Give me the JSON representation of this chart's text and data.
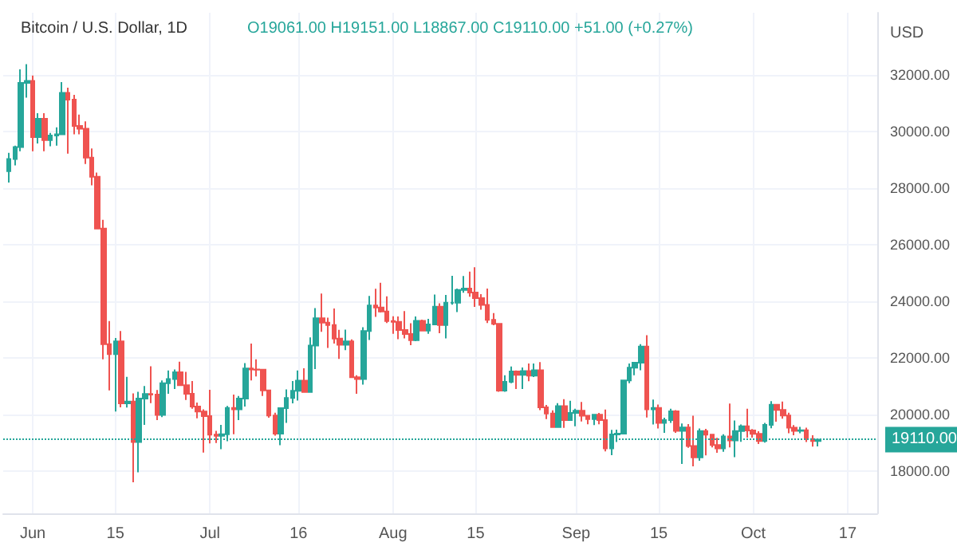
{
  "chart_data": {
    "type": "candlestick",
    "title": "Bitcoin / U.S. Dollar, 1D",
    "subtitle": "O19061.00 H19151.00 L18867.00 C19110.00 +51.00 (+0.27%)",
    "ylabel": "USD",
    "x": [
      "--05-28",
      "--05-29",
      "--05-30",
      "--05-31",
      "--06-01",
      "--06-02",
      "--06-03",
      "--06-04",
      "--06-05",
      "--06-06",
      "--06-07",
      "--06-08",
      "--06-09",
      "--06-10",
      "--06-11",
      "--06-12",
      "--06-13",
      "--06-14",
      "--06-15",
      "--06-16",
      "--06-17",
      "--06-18",
      "--06-19",
      "--06-20",
      "--06-21",
      "--06-22",
      "--06-23",
      "--06-24",
      "--06-25",
      "--06-26",
      "--06-27",
      "--06-28",
      "--06-29",
      "--06-30",
      "--07-01",
      "--07-02",
      "--07-03",
      "--07-04",
      "--07-05",
      "--07-06",
      "--07-07",
      "--07-08",
      "--07-09",
      "--07-10",
      "--07-11",
      "--07-12",
      "--07-13",
      "--07-14",
      "--07-15",
      "--07-16",
      "--07-17",
      "--07-18",
      "--07-19",
      "--07-20",
      "--07-21",
      "--07-22",
      "--07-23",
      "--07-24",
      "--07-25",
      "--07-26",
      "--07-27",
      "--07-28",
      "--07-29",
      "--07-30",
      "--07-31",
      "--08-01",
      "--08-02",
      "--08-03",
      "--08-04",
      "--08-05",
      "--08-06",
      "--08-07",
      "--08-08",
      "--08-09",
      "--08-10",
      "--08-11",
      "--08-12",
      "--08-13",
      "--08-14",
      "--08-15",
      "--08-16",
      "--08-17",
      "--08-18",
      "--08-19",
      "--08-20",
      "--08-21",
      "--08-22",
      "--08-23",
      "--08-24",
      "--08-25",
      "--08-26",
      "--08-27",
      "--08-28",
      "--08-29",
      "--08-30",
      "--08-31",
      "--09-01",
      "--09-02",
      "--09-03",
      "--09-04",
      "--09-05",
      "--09-06",
      "--09-07",
      "--09-08",
      "--09-09",
      "--09-10",
      "--09-11",
      "--09-12",
      "--09-13",
      "--09-14",
      "--09-15",
      "--09-16",
      "--09-17",
      "--09-18",
      "--09-19",
      "--09-20",
      "--09-21",
      "--09-22",
      "--09-23",
      "--09-24",
      "--09-25",
      "--09-26",
      "--09-27",
      "--09-28",
      "--09-29",
      "--09-30",
      "--10-01",
      "--10-02",
      "--10-03",
      "--10-04",
      "--10-05",
      "--10-06",
      "--10-07",
      "--10-08",
      "--10-09",
      "--10-10",
      "--10-11",
      "--10-12"
    ],
    "ohlc": [
      [
        28600,
        29250,
        28200,
        29030
      ],
      [
        29030,
        29500,
        28800,
        29450
      ],
      [
        29450,
        32200,
        29300,
        31720
      ],
      [
        31720,
        32380,
        31200,
        31790
      ],
      [
        31790,
        31980,
        29300,
        29800
      ],
      [
        29800,
        30650,
        29580,
        30450
      ],
      [
        30450,
        30650,
        29300,
        29700
      ],
      [
        29700,
        29950,
        29480,
        29860
      ],
      [
        29860,
        30150,
        29500,
        29900
      ],
      [
        29900,
        31750,
        29880,
        31370
      ],
      [
        31370,
        31550,
        29220,
        31130
      ],
      [
        31130,
        31300,
        29900,
        30200
      ],
      [
        30200,
        30600,
        29900,
        30100
      ],
      [
        30100,
        30360,
        28850,
        29080
      ],
      [
        29080,
        29400,
        28100,
        28400
      ],
      [
        28400,
        28550,
        26560,
        26570
      ],
      [
        26570,
        26880,
        21950,
        22480
      ],
      [
        22480,
        23300,
        20850,
        22130
      ],
      [
        22130,
        22700,
        20100,
        22580
      ],
      [
        22580,
        22950,
        20250,
        20390
      ],
      [
        20390,
        21330,
        20240,
        20450
      ],
      [
        20450,
        20740,
        17600,
        19020
      ],
      [
        19020,
        20800,
        17950,
        20560
      ],
      [
        20560,
        21000,
        19630,
        20720
      ],
      [
        20720,
        21700,
        20400,
        20700
      ],
      [
        20700,
        20860,
        19800,
        19980
      ],
      [
        19980,
        21200,
        19900,
        21100
      ],
      [
        21100,
        21550,
        20730,
        21250
      ],
      [
        21250,
        21590,
        20900,
        21490
      ],
      [
        21490,
        21860,
        21000,
        21030
      ],
      [
        21030,
        21500,
        20510,
        20730
      ],
      [
        20730,
        21180,
        20200,
        20280
      ],
      [
        20280,
        20420,
        19860,
        20100
      ],
      [
        20100,
        20180,
        18650,
        19940
      ],
      [
        19940,
        20870,
        18970,
        19280
      ],
      [
        19280,
        19420,
        18990,
        19240
      ],
      [
        19240,
        19630,
        18770,
        19300
      ],
      [
        19300,
        20300,
        19050,
        20230
      ],
      [
        20230,
        20700,
        19300,
        20180
      ],
      [
        20180,
        20650,
        19800,
        20560
      ],
      [
        20560,
        21810,
        20280,
        21620
      ],
      [
        21620,
        22500,
        21200,
        21590
      ],
      [
        21590,
        21950,
        21340,
        21580
      ],
      [
        21580,
        21600,
        20650,
        20850
      ],
      [
        20850,
        20850,
        19880,
        19960
      ],
      [
        19960,
        20060,
        19250,
        19320
      ],
      [
        19320,
        20230,
        18910,
        20220
      ],
      [
        20220,
        20880,
        19700,
        20580
      ],
      [
        20580,
        21180,
        20390,
        20830
      ],
      [
        20830,
        21550,
        20490,
        21190
      ],
      [
        21190,
        21630,
        20780,
        20790
      ],
      [
        20790,
        22720,
        20770,
        22430
      ],
      [
        22430,
        23760,
        21600,
        23400
      ],
      [
        23400,
        24270,
        22920,
        23240
      ],
      [
        23240,
        23420,
        22350,
        23160
      ],
      [
        23160,
        23740,
        22500,
        22680
      ],
      [
        22680,
        22990,
        21960,
        22460
      ],
      [
        22460,
        23000,
        22270,
        22580
      ],
      [
        22580,
        22650,
        21300,
        21310
      ],
      [
        21310,
        21380,
        20730,
        21250
      ],
      [
        21250,
        23080,
        21050,
        22950
      ],
      [
        22950,
        24190,
        22630,
        23850
      ],
      [
        23850,
        24440,
        23450,
        23780
      ],
      [
        23780,
        24650,
        23600,
        23640
      ],
      [
        23640,
        24170,
        23230,
        23300
      ],
      [
        23300,
        23470,
        22850,
        23270
      ],
      [
        23270,
        23460,
        22660,
        22980
      ],
      [
        22980,
        23650,
        22690,
        22840
      ],
      [
        22840,
        23220,
        22450,
        22620
      ],
      [
        22620,
        23460,
        22590,
        23310
      ],
      [
        23310,
        23350,
        22940,
        22960
      ],
      [
        22960,
        23380,
        22850,
        23180
      ],
      [
        23180,
        24240,
        23160,
        23810
      ],
      [
        23810,
        23930,
        22870,
        23160
      ],
      [
        23160,
        24220,
        22690,
        23950
      ],
      [
        23950,
        24900,
        23880,
        23950
      ],
      [
        23950,
        24450,
        23620,
        24400
      ],
      [
        24400,
        24890,
        24300,
        24450
      ],
      [
        24450,
        25050,
        24160,
        24310
      ],
      [
        24310,
        25200,
        23800,
        24110
      ],
      [
        24110,
        24250,
        23700,
        23870
      ],
      [
        23870,
        24450,
        23230,
        23340
      ],
      [
        23340,
        23580,
        23150,
        23200
      ],
      [
        23200,
        23220,
        20800,
        20840
      ],
      [
        20840,
        21380,
        20800,
        21150
      ],
      [
        21150,
        21690,
        21100,
        21520
      ],
      [
        21520,
        21550,
        20900,
        21400
      ],
      [
        21400,
        21660,
        20900,
        21530
      ],
      [
        21530,
        21800,
        21170,
        21370
      ],
      [
        21370,
        21800,
        21320,
        21560
      ],
      [
        21560,
        21850,
        20150,
        20250
      ],
      [
        20250,
        20330,
        19830,
        20030
      ],
      [
        20030,
        20140,
        19550,
        19550
      ],
      [
        19550,
        20400,
        19550,
        20290
      ],
      [
        20290,
        20540,
        19520,
        19800
      ],
      [
        19800,
        20480,
        19800,
        20050
      ],
      [
        20050,
        20200,
        19580,
        20130
      ],
      [
        20130,
        20440,
        19750,
        19950
      ],
      [
        19950,
        19980,
        19650,
        19830
      ],
      [
        19830,
        20000,
        19620,
        19990
      ],
      [
        19990,
        20050,
        19650,
        19800
      ],
      [
        19800,
        20170,
        18690,
        18800
      ],
      [
        18800,
        19450,
        18560,
        19290
      ],
      [
        19290,
        19460,
        19020,
        19320
      ],
      [
        19320,
        21220,
        19300,
        21200
      ],
      [
        21200,
        21800,
        21100,
        21650
      ],
      [
        21650,
        21850,
        21380,
        21830
      ],
      [
        21830,
        22480,
        21560,
        22400
      ],
      [
        22400,
        22800,
        19890,
        20180
      ],
      [
        20180,
        20520,
        19640,
        20230
      ],
      [
        20230,
        20350,
        19500,
        19700
      ],
      [
        19700,
        19880,
        19350,
        19800
      ],
      [
        19800,
        20200,
        19700,
        20110
      ],
      [
        20110,
        20150,
        19350,
        19420
      ],
      [
        19420,
        19680,
        18250,
        19540
      ],
      [
        19540,
        19660,
        18820,
        18880
      ],
      [
        18880,
        19950,
        18160,
        18480
      ],
      [
        18480,
        19500,
        18360,
        19410
      ],
      [
        19410,
        19490,
        18550,
        19280
      ],
      [
        19280,
        19300,
        18830,
        18920
      ],
      [
        18920,
        19170,
        18640,
        18800
      ],
      [
        18800,
        19300,
        18680,
        19220
      ],
      [
        19220,
        20380,
        18830,
        19080
      ],
      [
        19080,
        19780,
        18490,
        19410
      ],
      [
        19410,
        19640,
        19030,
        19580
      ],
      [
        19580,
        20200,
        19180,
        19430
      ],
      [
        19430,
        19480,
        19180,
        19310
      ],
      [
        19310,
        19400,
        18950,
        19060
      ],
      [
        19060,
        19700,
        19000,
        19630
      ],
      [
        19630,
        20470,
        19510,
        20340
      ],
      [
        20340,
        20370,
        19740,
        20160
      ],
      [
        20160,
        20450,
        19850,
        19960
      ],
      [
        19960,
        20060,
        19330,
        19530
      ],
      [
        19530,
        19620,
        19260,
        19420
      ],
      [
        19420,
        19560,
        19330,
        19440
      ],
      [
        19440,
        19530,
        19020,
        19130
      ],
      [
        19130,
        19260,
        18860,
        19060
      ],
      [
        19061,
        19151,
        18867,
        19110
      ]
    ],
    "xlim": [
      "--05-27",
      "--10-22"
    ],
    "xticks": [
      {
        "value": "--06-01",
        "label": "Jun"
      },
      {
        "value": "--06-15",
        "label": "15"
      },
      {
        "value": "--07-01",
        "label": "Jul"
      },
      {
        "value": "--07-16",
        "label": "16"
      },
      {
        "value": "--08-01",
        "label": "Aug"
      },
      {
        "value": "--08-15",
        "label": "15"
      },
      {
        "value": "--09-01",
        "label": "Sep"
      },
      {
        "value": "--09-15",
        "label": "15"
      },
      {
        "value": "--10-01",
        "label": "Oct"
      },
      {
        "value": "--10-17",
        "label": "17"
      }
    ],
    "ylim": [
      16500,
      34200
    ],
    "yticks": [
      {
        "value": 18000,
        "label": "18000.00"
      },
      {
        "value": 20000,
        "label": "20000.00"
      },
      {
        "value": 22000,
        "label": "22000.00"
      },
      {
        "value": 24000,
        "label": "24000.00"
      },
      {
        "value": 26000,
        "label": "26000.00"
      },
      {
        "value": 28000,
        "label": "28000.00"
      },
      {
        "value": 30000,
        "label": "30000.00"
      },
      {
        "value": 32000,
        "label": "32000.00"
      }
    ],
    "ref_lines": [
      {
        "axis": "y",
        "value": 19110,
        "label": "19110.00",
        "color": "#26a69a",
        "line_style": "dotted"
      }
    ],
    "grid": true
  }
}
